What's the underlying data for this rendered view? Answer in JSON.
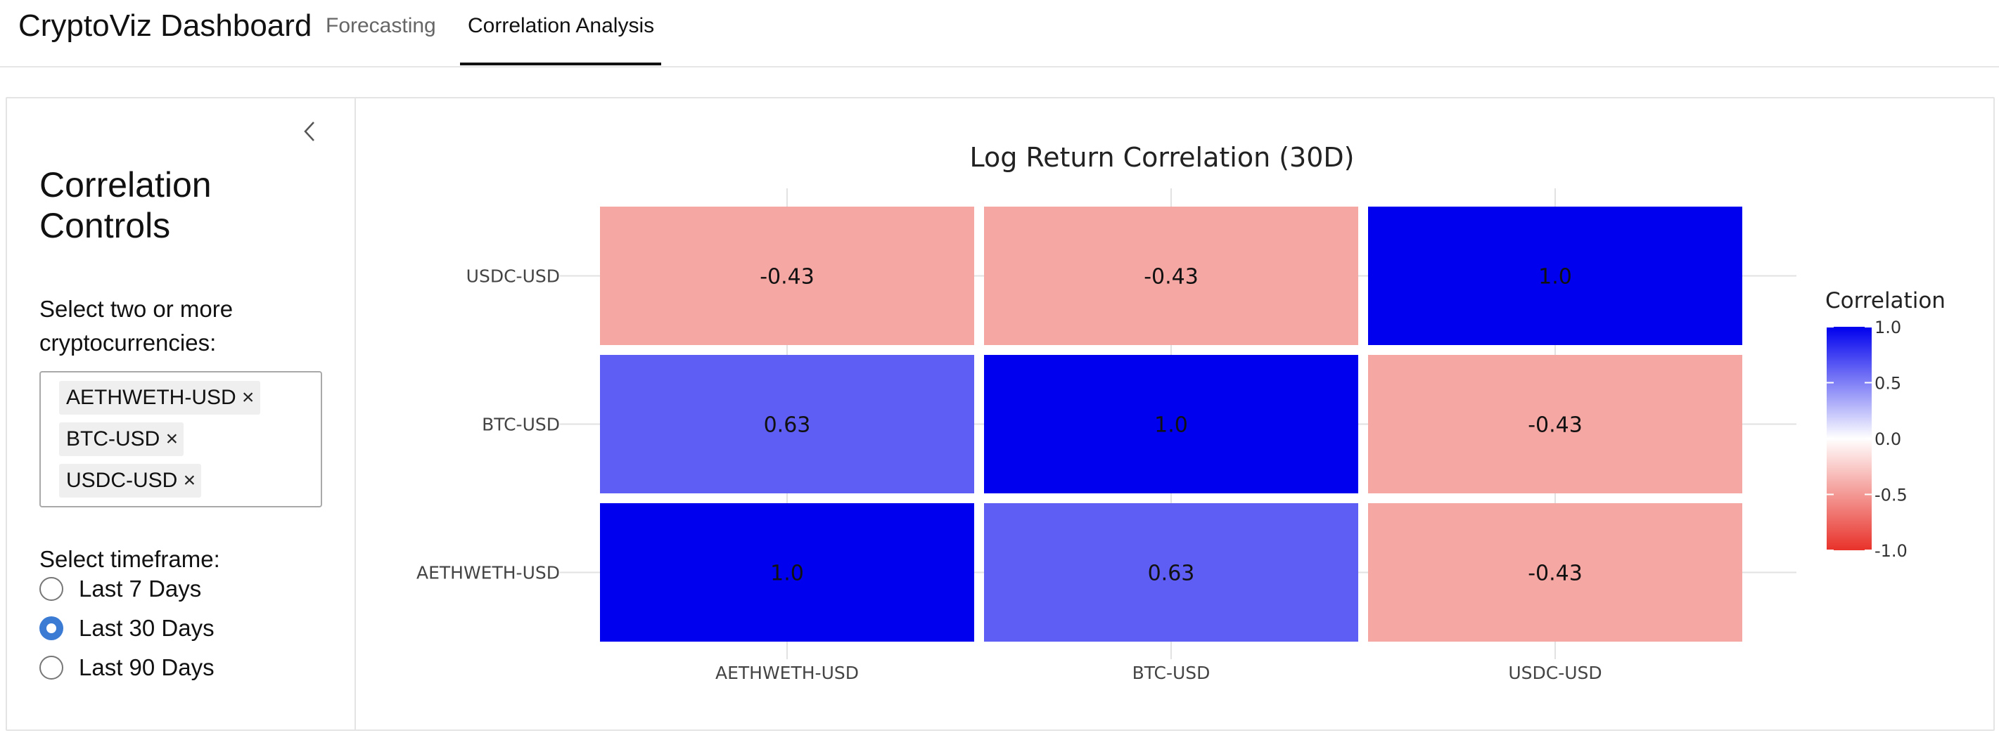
{
  "navbar": {
    "brand": "CryptoViz Dashboard",
    "tabs": [
      {
        "label": "Forecasting",
        "active": false
      },
      {
        "label": "Correlation Analysis",
        "active": true
      }
    ]
  },
  "sidebar": {
    "title": "Correlation Controls",
    "select_label": "Select two or more cryptocurrencies:",
    "selected": [
      "AETHWETH-USD",
      "BTC-USD",
      "USDC-USD"
    ],
    "remove_glyph": "×",
    "timeframe_label": "Select timeframe:",
    "timeframes": [
      {
        "label": "Last 7 Days",
        "checked": false
      },
      {
        "label": "Last 30 Days",
        "checked": true
      },
      {
        "label": "Last 90 Days",
        "checked": false
      }
    ],
    "collapse_icon": "chevron-left-icon"
  },
  "chart_data": {
    "type": "heatmap",
    "title": "Log Return Correlation (30D)",
    "x_categories": [
      "AETHWETH-USD",
      "BTC-USD",
      "USDC-USD"
    ],
    "y_categories": [
      "AETHWETH-USD",
      "BTC-USD",
      "USDC-USD"
    ],
    "values": [
      [
        1.0,
        0.63,
        -0.43
      ],
      [
        0.63,
        1.0,
        -0.43
      ],
      [
        -0.43,
        -0.43,
        1.0
      ]
    ],
    "value_labels": [
      [
        "1.0",
        "0.63",
        "-0.43"
      ],
      [
        "0.63",
        "1.0",
        "-0.43"
      ],
      [
        "-0.43",
        "-0.43",
        "1.0"
      ]
    ],
    "legend": {
      "title": "Correlation",
      "ticks": [
        "1.0",
        "0.5",
        "0.0",
        "-0.5",
        "-1.0"
      ],
      "range": [
        -1,
        1
      ],
      "placement": "right"
    },
    "colorscale": {
      "low": "#e8322a",
      "mid": "#ffffff",
      "high": "#0000ee"
    }
  }
}
